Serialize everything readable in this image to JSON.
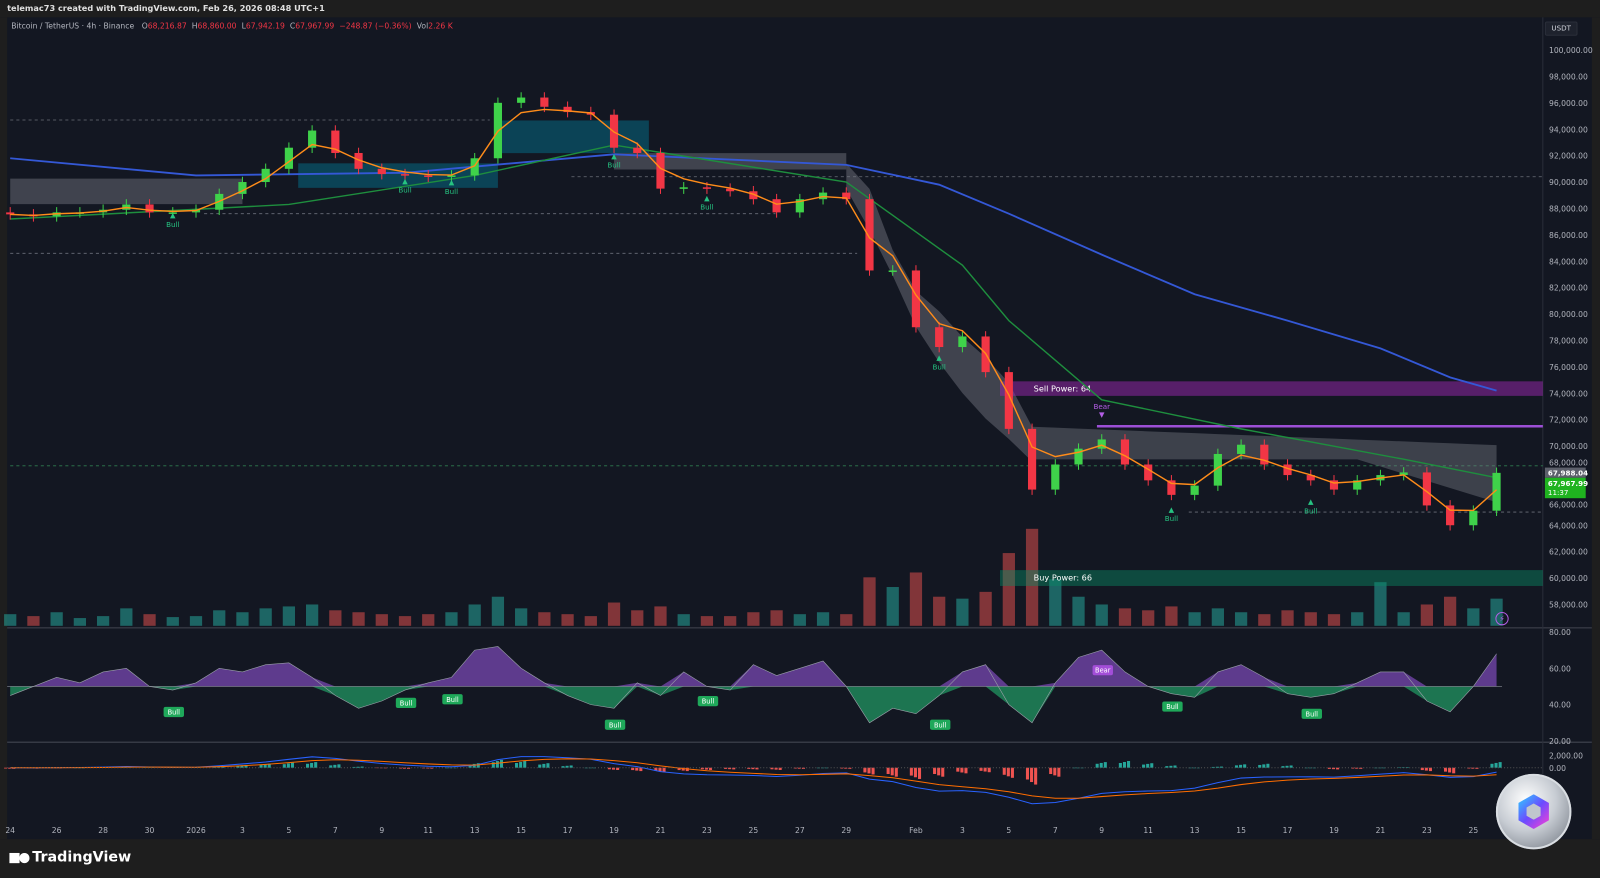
{
  "header": {
    "title": "telemac73 created with TradingView.com, Feb 26, 2026 08:48 UTC+1"
  },
  "legend": {
    "symbol": "Bitcoin / TetherUS · 4h · Binance",
    "values": [
      {
        "k": "O",
        "v": "68,216.87"
      },
      {
        "k": "H",
        "v": "68,860.00"
      },
      {
        "k": "L",
        "v": "67,942.19"
      },
      {
        "k": "C",
        "v": "67,967.99"
      },
      {
        "k": "",
        "v": "−248.87 (−0.36%)"
      },
      {
        "k": "Vol",
        "v": "2.26 K"
      }
    ]
  },
  "currency": "USDT",
  "brand": "TradingView",
  "price_labels": {
    "last": "67,988.04",
    "close": "67,967.99",
    "countdown": "11:37"
  },
  "zones": {
    "sell": "Sell Power: 64",
    "buy": "Buy Power: 66"
  },
  "colors": {
    "up": "#3fd24a",
    "down": "#f23645",
    "ema_fast": "#ff8c1a",
    "ma_mid": "#1e8e3e",
    "ma_long": "#3458d6",
    "sell_zone": "#9c27b0",
    "buy_zone": "#0b8a63",
    "bull": "#26c281",
    "bear": "#b45ee6",
    "background": "#131722"
  },
  "chart_data": {
    "type": "candlestick",
    "interval": "4h",
    "price_axis": {
      "ticks": [
        "100,000.00",
        "98,000.00",
        "96,000.00",
        "94,000.00",
        "92,000.00",
        "90,000.00",
        "88,000.00",
        "86,000.00",
        "84,000.00",
        "82,000.00",
        "80,000.00",
        "78,000.00",
        "76,000.00",
        "74,000.00",
        "72,000.00",
        "70,000.00",
        "68,000.00",
        "66,000.00",
        "64,000.00",
        "62,000.00",
        "60,000.00",
        "58,000.00"
      ],
      "range": [
        57000,
        100500
      ]
    },
    "time_axis": [
      [
        "24",
        "Dec 24"
      ],
      [
        "26",
        "Dec 26"
      ],
      [
        "28",
        "Dec 28"
      ],
      [
        "30",
        "Dec 30"
      ],
      [
        "2026",
        "Jan 1"
      ],
      [
        "3",
        "Jan 3"
      ],
      [
        "5",
        "Jan 5"
      ],
      [
        "7",
        "Jan 7"
      ],
      [
        "9",
        "Jan 9"
      ],
      [
        "11",
        "Jan 11"
      ],
      [
        "13",
        "Jan 13"
      ],
      [
        "15",
        "Jan 15"
      ],
      [
        "17",
        "Jan 17"
      ],
      [
        "19",
        "Jan 19"
      ],
      [
        "21",
        "Jan 21"
      ],
      [
        "23",
        "Jan 23"
      ],
      [
        "25",
        "Jan 25"
      ],
      [
        "27",
        "Jan 27"
      ],
      [
        "29",
        "Jan 29"
      ],
      [
        "Feb",
        "Feb 1"
      ],
      [
        "3",
        "Feb 3"
      ],
      [
        "5",
        "Feb 5"
      ],
      [
        "7",
        "Feb 7"
      ],
      [
        "9",
        "Feb 9"
      ],
      [
        "11",
        "Feb 11"
      ],
      [
        "13",
        "Feb 13"
      ],
      [
        "15",
        "Feb 15"
      ],
      [
        "17",
        "Feb 17"
      ],
      [
        "19",
        "Feb 19"
      ],
      [
        "21",
        "Feb 21"
      ],
      [
        "23",
        "Feb 23"
      ],
      [
        "25",
        "Feb 25"
      ]
    ],
    "x": [
      "Dec 24",
      "Dec 25",
      "Dec 26",
      "Dec 27",
      "Dec 28",
      "Dec 29",
      "Dec 30",
      "Dec 31",
      "Jan 1",
      "Jan 2",
      "Jan 3",
      "Jan 4",
      "Jan 5",
      "Jan 6",
      "Jan 7",
      "Jan 8",
      "Jan 9",
      "Jan 10",
      "Jan 11",
      "Jan 12",
      "Jan 13",
      "Jan 14",
      "Jan 15",
      "Jan 16",
      "Jan 17",
      "Jan 18",
      "Jan 19",
      "Jan 20",
      "Jan 21",
      "Jan 22",
      "Jan 23",
      "Jan 24",
      "Jan 25",
      "Jan 26",
      "Jan 27",
      "Jan 28",
      "Jan 29",
      "Jan 30",
      "Jan 31",
      "Feb 1",
      "Feb 2",
      "Feb 3",
      "Feb 4",
      "Feb 5",
      "Feb 6",
      "Feb 7",
      "Feb 8",
      "Feb 9",
      "Feb 10",
      "Feb 11",
      "Feb 12",
      "Feb 13",
      "Feb 14",
      "Feb 15",
      "Feb 16",
      "Feb 17",
      "Feb 18",
      "Feb 19",
      "Feb 20",
      "Feb 21",
      "Feb 22",
      "Feb 23",
      "Feb 24",
      "Feb 25",
      "Feb 26"
    ],
    "close": [
      87550,
      87400,
      87700,
      87700,
      87900,
      88300,
      87700,
      87700,
      87900,
      89100,
      90000,
      91000,
      92600,
      93900,
      92200,
      91000,
      90600,
      90500,
      90400,
      90500,
      91800,
      96000,
      96400,
      95700,
      95300,
      95100,
      92600,
      92200,
      89500,
      89600,
      89500,
      89300,
      88700,
      87700,
      88700,
      89200,
      88700,
      83300,
      83300,
      79000,
      77500,
      78300,
      75600,
      71300,
      66700,
      68600,
      69800,
      70500,
      68600,
      67400,
      66300,
      67000,
      69400,
      70100,
      68600,
      67800,
      67400,
      66700,
      67400,
      67800,
      68000,
      65500,
      64000,
      65100,
      67968
    ],
    "volume_relative": [
      12,
      10,
      14,
      8,
      10,
      18,
      12,
      9,
      10,
      16,
      14,
      18,
      20,
      22,
      16,
      14,
      12,
      10,
      12,
      14,
      22,
      30,
      18,
      14,
      12,
      10,
      24,
      16,
      20,
      12,
      10,
      10,
      14,
      16,
      12,
      14,
      12,
      50,
      40,
      55,
      30,
      28,
      35,
      75,
      100,
      48,
      30,
      22,
      18,
      16,
      20,
      14,
      18,
      14,
      12,
      16,
      14,
      12,
      14,
      45,
      14,
      22,
      30,
      18,
      28
    ],
    "ma_mid": [
      [
        "Dec 24",
        87200
      ],
      [
        "Jan 5",
        88300
      ],
      [
        "Jan 13",
        90500
      ],
      [
        "Jan 19",
        92800
      ],
      [
        "Jan 29",
        90000
      ],
      [
        "Feb 3",
        83700
      ],
      [
        "Feb 5",
        79500
      ],
      [
        "Feb 9",
        73500
      ],
      [
        "Feb 15",
        71300
      ],
      [
        "Feb 22",
        69000
      ],
      [
        "Feb 26",
        67600
      ]
    ],
    "ma_long": [
      [
        "Dec 24",
        91800
      ],
      [
        "Jan 1",
        90500
      ],
      [
        "Jan 10",
        90700
      ],
      [
        "Jan 19",
        92100
      ],
      [
        "Jan 29",
        91300
      ],
      [
        "Feb 2",
        89800
      ],
      [
        "Feb 5",
        87600
      ],
      [
        "Feb 9",
        84500
      ],
      [
        "Feb 13",
        81500
      ],
      [
        "Feb 17",
        79500
      ],
      [
        "Feb 21",
        77400
      ],
      [
        "Feb 24",
        75200
      ],
      [
        "Feb 26",
        74200
      ]
    ],
    "signals": [
      {
        "label": "Bull",
        "date": "Dec 31",
        "price": 87300
      },
      {
        "label": "Bull",
        "date": "Jan 10",
        "price": 89900
      },
      {
        "label": "Bull",
        "date": "Jan 12",
        "price": 89800
      },
      {
        "label": "Bull",
        "date": "Jan 19",
        "price": 91800
      },
      {
        "label": "Bull",
        "date": "Jan 23",
        "price": 88600
      },
      {
        "label": "Bull",
        "date": "Feb 2",
        "price": 76500
      },
      {
        "label": "Bear",
        "date": "Feb 9",
        "price": 72200
      },
      {
        "label": "Bull",
        "date": "Feb 12",
        "price": 65000
      },
      {
        "label": "Bull",
        "date": "Feb 18",
        "price": 65600
      }
    ],
    "sell_zone": [
      73800,
      74900
    ],
    "buy_zone": [
      59400,
      60600
    ],
    "resistance": 71500,
    "rsi": {
      "ticks": [
        "80.00",
        "60.00",
        "40.00",
        "20.00"
      ],
      "range": [
        20,
        80
      ],
      "midline": 50,
      "values": [
        45,
        50,
        55,
        52,
        58,
        60,
        50,
        48,
        52,
        60,
        58,
        62,
        63,
        55,
        45,
        38,
        42,
        48,
        52,
        55,
        70,
        72,
        60,
        52,
        45,
        40,
        38,
        52,
        45,
        58,
        50,
        48,
        62,
        56,
        60,
        64,
        50,
        30,
        38,
        35,
        45,
        58,
        62,
        40,
        30,
        52,
        66,
        70,
        58,
        50,
        46,
        44,
        58,
        62,
        55,
        46,
        44,
        46,
        52,
        58,
        58,
        42,
        36,
        50,
        68
      ],
      "signals": [
        {
          "label": "Bull",
          "date": "Dec 31",
          "value": 41
        },
        {
          "label": "Bull",
          "date": "Jan 10",
          "value": 46
        },
        {
          "label": "Bull",
          "date": "Jan 12",
          "value": 48
        },
        {
          "label": "Bull",
          "date": "Jan 19",
          "value": 34
        },
        {
          "label": "Bull",
          "date": "Jan 23",
          "value": 47
        },
        {
          "label": "Bull",
          "date": "Feb 2",
          "value": 34
        },
        {
          "label": "Bear",
          "date": "Feb 9",
          "value": 64
        },
        {
          "label": "Bull",
          "date": "Feb 12",
          "value": 44
        },
        {
          "label": "Bull",
          "date": "Feb 18",
          "value": 40
        }
      ]
    },
    "macd": {
      "ticks": [
        "2,000.00",
        "0.00"
      ],
      "histogram": [
        -100,
        -80,
        -50,
        0,
        50,
        80,
        60,
        40,
        60,
        150,
        250,
        350,
        450,
        500,
        300,
        100,
        -50,
        -100,
        -80,
        0,
        400,
        700,
        600,
        400,
        200,
        0,
        -200,
        -300,
        -400,
        -300,
        -200,
        -150,
        -150,
        -200,
        -100,
        0,
        -100,
        -600,
        -800,
        -1000,
        -800,
        -500,
        -400,
        -900,
        -1500,
        -800,
        0,
        500,
        600,
        400,
        200,
        0,
        100,
        300,
        350,
        200,
        0,
        -150,
        -100,
        0,
        50,
        -300,
        -500,
        -100,
        500
      ]
    }
  }
}
